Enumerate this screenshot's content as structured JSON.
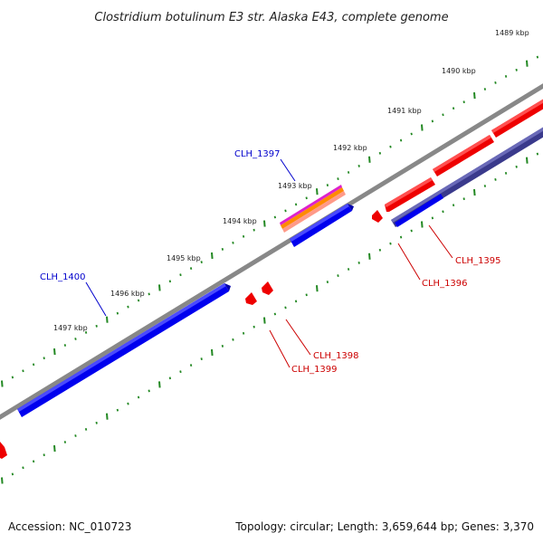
{
  "title": "Clostridium botulinum E3 str. Alaska E43, complete genome",
  "footer": {
    "accession": "Accession: NC_010723",
    "summary": "Topology: circular; Length: 3,659,644 bp; Genes: 3,370"
  },
  "colors": {
    "forward_strand": "#0000ee",
    "reverse_strand": "#ee0000",
    "navy_gene": "#3a3a8c",
    "backbone": "#888888",
    "ticks": "#228822",
    "label_blue": "#0000cc",
    "label_red": "#cc0000"
  },
  "ticks": [
    {
      "label": "1489 kbp"
    },
    {
      "label": "1490 kbp"
    },
    {
      "label": "1491 kbp"
    },
    {
      "label": "1492 kbp"
    },
    {
      "label": "1493 kbp"
    },
    {
      "label": "1494 kbp"
    },
    {
      "label": "1495 kbp"
    },
    {
      "label": "1496 kbp"
    },
    {
      "label": "1497 kbp"
    }
  ],
  "genes": [
    {
      "label": "CLH_1395",
      "strand": "reverse"
    },
    {
      "label": "CLH_1396",
      "strand": "reverse"
    },
    {
      "label": "CLH_1397",
      "strand": "forward"
    },
    {
      "label": "CLH_1398",
      "strand": "reverse"
    },
    {
      "label": "CLH_1399",
      "strand": "reverse"
    },
    {
      "label": "CLH_1400",
      "strand": "forward"
    }
  ]
}
